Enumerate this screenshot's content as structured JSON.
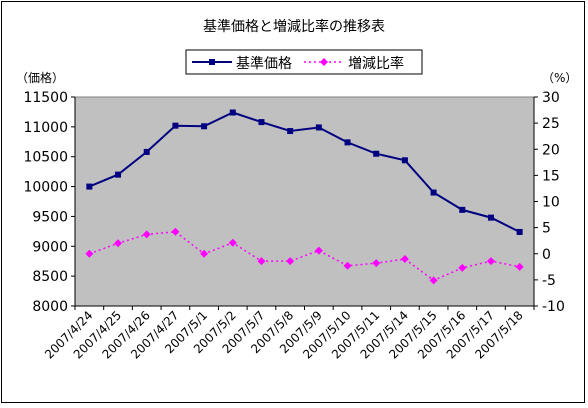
{
  "chart_data": {
    "type": "line",
    "title": "基準価格と増減比率の推移表",
    "categories": [
      "2007/4/24",
      "2007/4/25",
      "2007/4/26",
      "2007/4/27",
      "2007/5/1",
      "2007/5/2",
      "2007/5/7",
      "2007/5/8",
      "2007/5/9",
      "2007/5/10",
      "2007/5/11",
      "2007/5/14",
      "2007/5/15",
      "2007/5/16",
      "2007/5/17",
      "2007/5/18"
    ],
    "series": [
      {
        "name": "基準価格",
        "axis": "left",
        "color": "#000080",
        "marker": "square",
        "line_style": "solid",
        "values": [
          10000,
          10200,
          10580,
          11020,
          11010,
          11240,
          11080,
          10930,
          10990,
          10740,
          10550,
          10440,
          9900,
          9610,
          9480,
          9240
        ]
      },
      {
        "name": "増減比率",
        "axis": "right",
        "color": "#ff00ff",
        "marker": "diamond",
        "line_style": "dotted",
        "values": [
          0.0,
          2.0,
          3.7,
          4.2,
          0.0,
          2.1,
          -1.4,
          -1.4,
          0.6,
          -2.3,
          -1.8,
          -1.0,
          -5.1,
          -2.7,
          -1.4,
          -2.5
        ]
      }
    ],
    "left_axis": {
      "label": "（価格）",
      "min": 8000,
      "max": 11500,
      "step": 500
    },
    "right_axis": {
      "label": "（%）",
      "min": -10,
      "max": 30,
      "step": 5
    },
    "plot_background": "#c0c0c0",
    "grid": false,
    "legend_position": "top"
  }
}
